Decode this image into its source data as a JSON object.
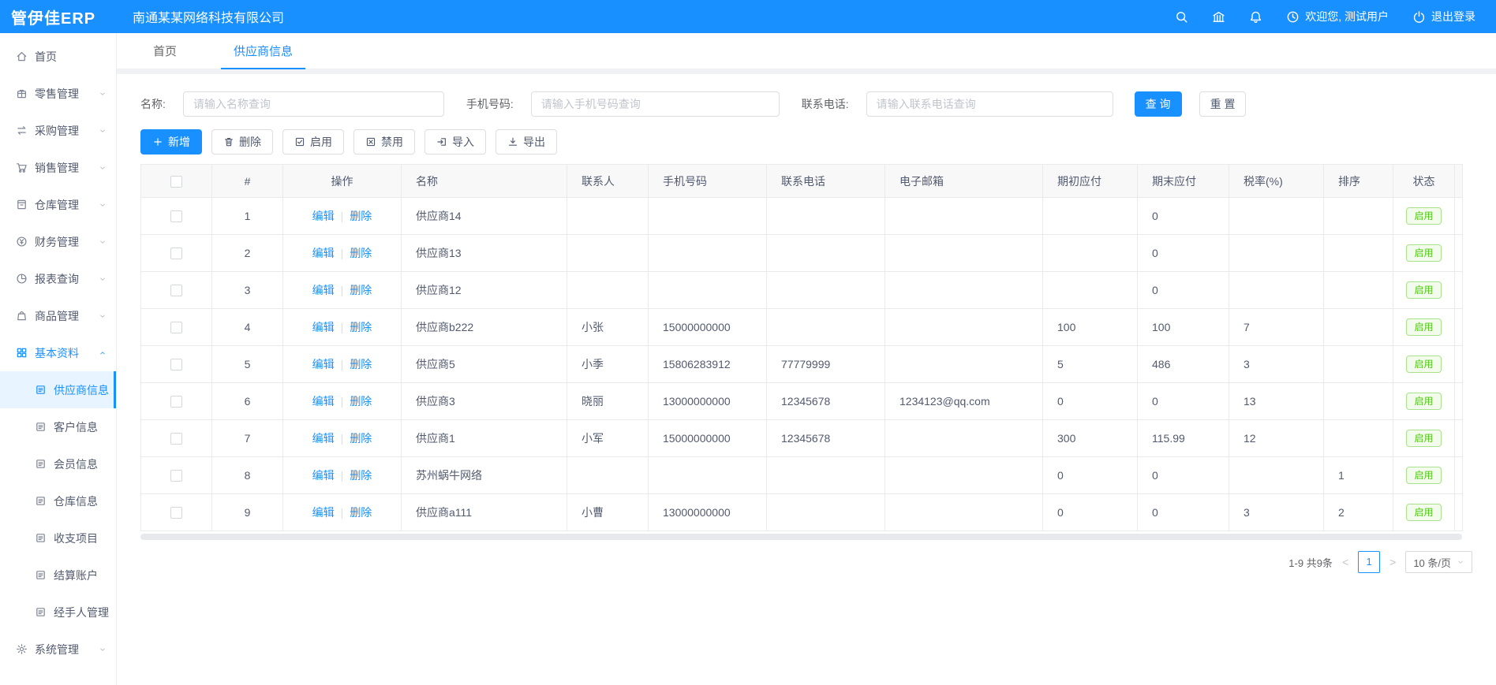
{
  "app": {
    "logo": "管伊佳ERP",
    "company": "南通某某网络科技有限公司"
  },
  "header": {
    "welcome": "欢迎您, 测试用户",
    "logout": "退出登录"
  },
  "sidebar": {
    "items": [
      {
        "id": "home",
        "label": "首页",
        "icon": "home",
        "level": 1,
        "chevron": null
      },
      {
        "id": "retail",
        "label": "零售管理",
        "icon": "retail",
        "level": 1,
        "chevron": "down"
      },
      {
        "id": "purchase",
        "label": "采购管理",
        "icon": "purchase",
        "level": 1,
        "chevron": "down"
      },
      {
        "id": "sales",
        "label": "销售管理",
        "icon": "sales",
        "level": 1,
        "chevron": "down"
      },
      {
        "id": "warehouse",
        "label": "仓库管理",
        "icon": "warehouse",
        "level": 1,
        "chevron": "down"
      },
      {
        "id": "finance",
        "label": "财务管理",
        "icon": "finance",
        "level": 1,
        "chevron": "down"
      },
      {
        "id": "report",
        "label": "报表查询",
        "icon": "report",
        "level": 1,
        "chevron": "down"
      },
      {
        "id": "goods",
        "label": "商品管理",
        "icon": "goods",
        "level": 1,
        "chevron": "down"
      },
      {
        "id": "basic",
        "label": "基本资料",
        "icon": "basic",
        "level": 1,
        "chevron": "up",
        "open": true
      },
      {
        "id": "supplier",
        "label": "供应商信息",
        "icon": "doc",
        "level": 2,
        "active": true
      },
      {
        "id": "customer",
        "label": "客户信息",
        "icon": "doc",
        "level": 2
      },
      {
        "id": "member",
        "label": "会员信息",
        "icon": "doc",
        "level": 2
      },
      {
        "id": "warehouse-info",
        "label": "仓库信息",
        "icon": "doc",
        "level": 2
      },
      {
        "id": "income-expense",
        "label": "收支项目",
        "icon": "doc",
        "level": 2
      },
      {
        "id": "settlement-account",
        "label": "结算账户",
        "icon": "doc",
        "level": 2
      },
      {
        "id": "handler",
        "label": "经手人管理",
        "icon": "doc",
        "level": 2
      },
      {
        "id": "system",
        "label": "系统管理",
        "icon": "system",
        "level": 1,
        "chevron": "down"
      }
    ]
  },
  "tabs": [
    {
      "id": "home",
      "label": "首页",
      "active": false
    },
    {
      "id": "supplier-info",
      "label": "供应商信息",
      "active": true
    }
  ],
  "search": {
    "fields": [
      {
        "id": "name",
        "label": "名称:",
        "placeholder": "请输入名称查询"
      },
      {
        "id": "mobile",
        "label": "手机号码:",
        "placeholder": "请输入手机号码查询"
      },
      {
        "id": "tel",
        "label": "联系电话:",
        "placeholder": "请输入联系电话查询"
      }
    ],
    "query_label": "查 询",
    "reset_label": "重 置"
  },
  "toolbar": {
    "buttons": [
      {
        "id": "add",
        "label": "新增",
        "icon": "plus",
        "primary": true
      },
      {
        "id": "delete",
        "label": "删除",
        "icon": "trash"
      },
      {
        "id": "enable",
        "label": "启用",
        "icon": "check-square"
      },
      {
        "id": "disable",
        "label": "禁用",
        "icon": "close-square"
      },
      {
        "id": "import",
        "label": "导入",
        "icon": "import"
      },
      {
        "id": "export",
        "label": "导出",
        "icon": "export"
      }
    ]
  },
  "table": {
    "columns": [
      {
        "key": "index",
        "label": "#"
      },
      {
        "key": "action",
        "label": "操作"
      },
      {
        "key": "name",
        "label": "名称"
      },
      {
        "key": "contact",
        "label": "联系人"
      },
      {
        "key": "mobile",
        "label": "手机号码"
      },
      {
        "key": "tel",
        "label": "联系电话"
      },
      {
        "key": "email",
        "label": "电子邮箱"
      },
      {
        "key": "begin_payable",
        "label": "期初应付"
      },
      {
        "key": "end_payable",
        "label": "期末应付"
      },
      {
        "key": "tax_rate",
        "label": "税率(%)"
      },
      {
        "key": "sort",
        "label": "排序"
      },
      {
        "key": "status",
        "label": "状态"
      }
    ],
    "action_edit": "编辑",
    "action_divider": "|",
    "action_delete": "删除",
    "rows": [
      {
        "index": "1",
        "name": "供应商14",
        "contact": "",
        "mobile": "",
        "tel": "",
        "email": "",
        "begin_payable": "",
        "end_payable": "0",
        "tax_rate": "",
        "sort": "",
        "status": "启用"
      },
      {
        "index": "2",
        "name": "供应商13",
        "contact": "",
        "mobile": "",
        "tel": "",
        "email": "",
        "begin_payable": "",
        "end_payable": "0",
        "tax_rate": "",
        "sort": "",
        "status": "启用"
      },
      {
        "index": "3",
        "name": "供应商12",
        "contact": "",
        "mobile": "",
        "tel": "",
        "email": "",
        "begin_payable": "",
        "end_payable": "0",
        "tax_rate": "",
        "sort": "",
        "status": "启用"
      },
      {
        "index": "4",
        "name": "供应商b222",
        "contact": "小张",
        "mobile": "15000000000",
        "tel": "",
        "email": "",
        "begin_payable": "100",
        "end_payable": "100",
        "tax_rate": "7",
        "sort": "",
        "status": "启用"
      },
      {
        "index": "5",
        "name": "供应商5",
        "contact": "小季",
        "mobile": "15806283912",
        "tel": "77779999",
        "email": "",
        "begin_payable": "5",
        "end_payable": "486",
        "tax_rate": "3",
        "sort": "",
        "status": "启用"
      },
      {
        "index": "6",
        "name": "供应商3",
        "contact": "晓丽",
        "mobile": "13000000000",
        "tel": "12345678",
        "email": "1234123@qq.com",
        "begin_payable": "0",
        "end_payable": "0",
        "tax_rate": "13",
        "sort": "",
        "status": "启用"
      },
      {
        "index": "7",
        "name": "供应商1",
        "contact": "小军",
        "mobile": "15000000000",
        "tel": "12345678",
        "email": "",
        "begin_payable": "300",
        "end_payable": "115.99",
        "tax_rate": "12",
        "sort": "",
        "status": "启用"
      },
      {
        "index": "8",
        "name": "苏州蜗牛网络",
        "contact": "",
        "mobile": "",
        "tel": "",
        "email": "",
        "begin_payable": "0",
        "end_payable": "0",
        "tax_rate": "",
        "sort": "1",
        "status": "启用"
      },
      {
        "index": "9",
        "name": "供应商a111",
        "contact": "小曹",
        "mobile": "13000000000",
        "tel": "",
        "email": "",
        "begin_payable": "0",
        "end_payable": "0",
        "tax_rate": "3",
        "sort": "2",
        "status": "启用"
      }
    ]
  },
  "pagination": {
    "total": "1-9 共9条",
    "prev": "<",
    "page": "1",
    "next": ">",
    "page_size": "10 条/页"
  },
  "colors": {
    "primary": "#1890ff",
    "success": "#52c41a",
    "header_bg": "#1890ff",
    "active_item_bg": "#e8f4ff"
  }
}
